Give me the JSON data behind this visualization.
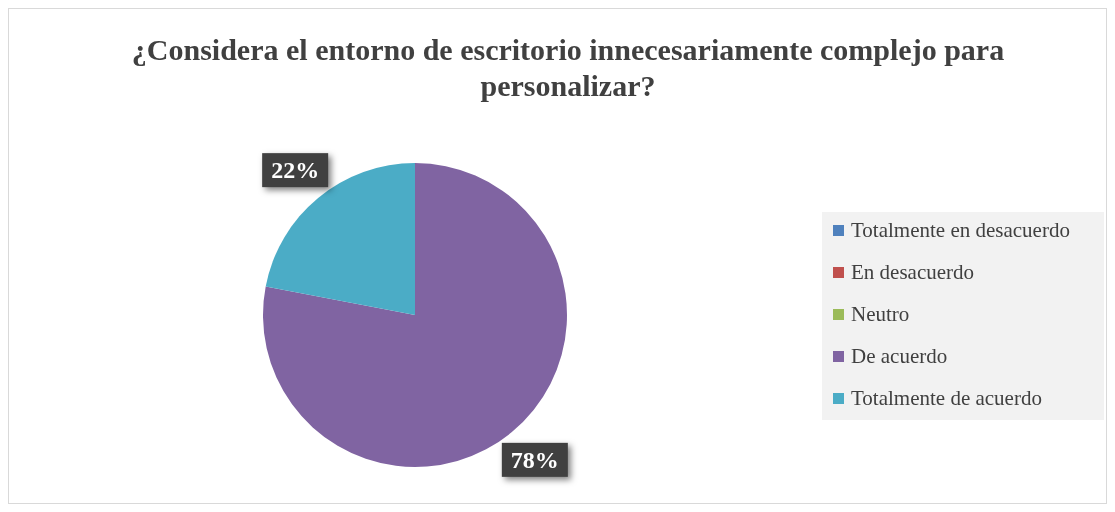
{
  "chart_data": {
    "type": "pie",
    "title": "¿Considera el entorno de escritorio innecesariamente complejo para personalizar?",
    "categories": [
      "Totalmente en desacuerdo",
      "En desacuerdo",
      "Neutro",
      "De acuerdo",
      "Totalmente de acuerdo"
    ],
    "values": [
      0,
      0,
      0,
      78,
      22
    ],
    "colors": [
      "#4f81bd",
      "#c0504d",
      "#9bbb59",
      "#8064a2",
      "#4bacc6"
    ],
    "value_labels": [
      null,
      null,
      null,
      "78%",
      "22%"
    ],
    "legend": "right"
  }
}
